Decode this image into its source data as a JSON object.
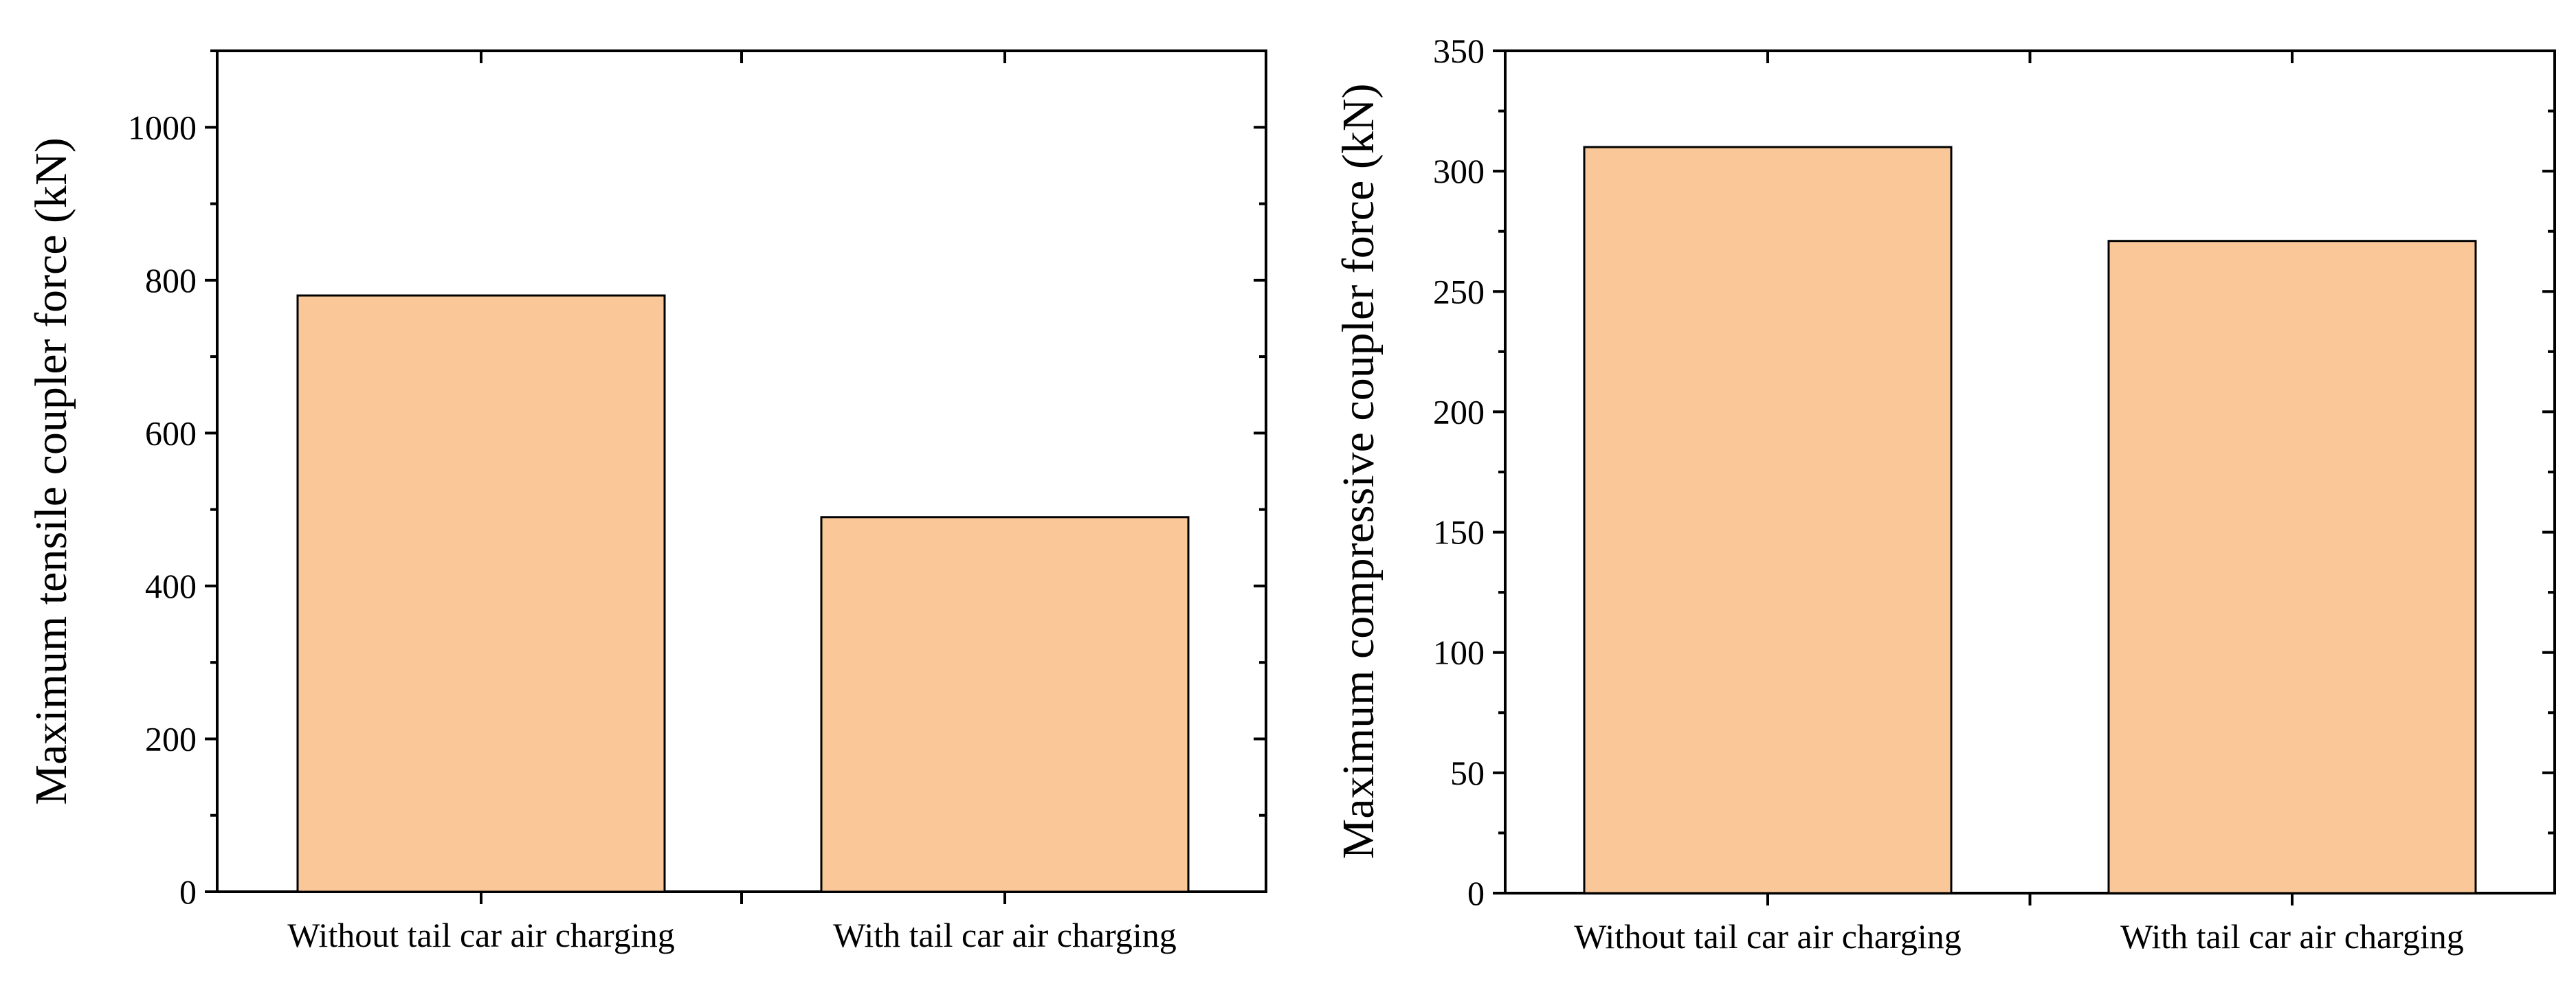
{
  "chart_data": [
    {
      "type": "bar",
      "categories": [
        "Without tail car air charging",
        "With tail car air charging"
      ],
      "values": [
        780,
        490
      ],
      "ylabel": "Maximum tensile coupler force (kN)",
      "xlabel": "",
      "ylim": [
        0,
        1100
      ],
      "yticks": [
        0,
        200,
        400,
        600,
        800,
        1000
      ],
      "y_minor_step": 100,
      "bar_color": "#FAC898",
      "grid": false
    },
    {
      "type": "bar",
      "categories": [
        "Without tail car air charging",
        "With tail car air charging"
      ],
      "values": [
        310,
        271
      ],
      "ylabel": "Maximum compressive coupler force (kN)",
      "xlabel": "",
      "ylim": [
        0,
        350
      ],
      "yticks": [
        0,
        50,
        100,
        150,
        200,
        250,
        300,
        350
      ],
      "y_minor_step": 25,
      "bar_color": "#FAC898",
      "grid": false
    }
  ]
}
